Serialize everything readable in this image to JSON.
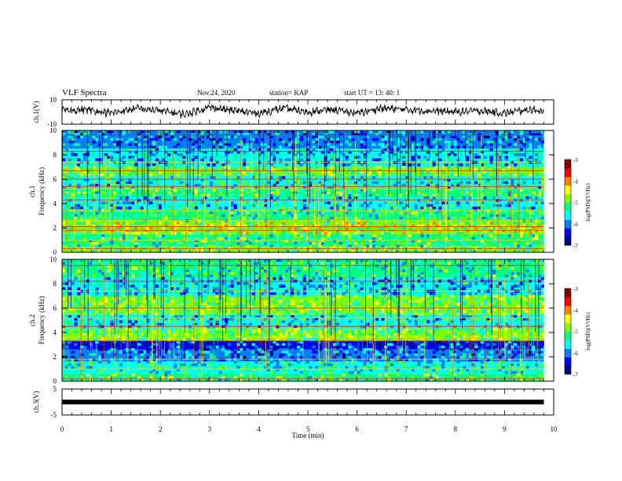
{
  "header": {
    "title": "VLF Spectra",
    "date": "Nov.24, 2020",
    "station": "station= KAP",
    "start_ut": "start UT =  13: 40: 1"
  },
  "colors": {
    "colormap": [
      "#00008a",
      "#0000ff",
      "#0080ff",
      "#00ffff",
      "#00ff80",
      "#80ff00",
      "#ffff00",
      "#ff8000",
      "#ff0000",
      "#8a0000"
    ],
    "trace": "#000000",
    "frame": "#000000"
  },
  "chart_data": [
    {
      "panel": "ch1-waveform",
      "type": "line",
      "ylabel": "ch.1(V)",
      "ylim": [
        -10,
        10
      ],
      "yticks": [
        "10",
        "-10"
      ],
      "xlim": [
        0,
        10
      ],
      "series": [
        {
          "x": [
            0,
            0.5,
            1,
            1.5,
            2,
            2.5,
            3,
            3.5,
            4,
            4.5,
            5,
            5.5,
            6,
            6.5,
            7,
            7.5,
            8,
            8.5,
            9,
            9.5,
            9.8
          ],
          "values": [
            1,
            2,
            -1,
            3,
            1,
            -2,
            4,
            1,
            -1,
            3,
            0,
            2,
            -1,
            3,
            2,
            1,
            0,
            1,
            -1,
            2,
            1
          ]
        }
      ]
    },
    {
      "panel": "ch1-spectrogram",
      "type": "heatmap",
      "ylabel": "ch.1\nFrequency (kHz)",
      "ylim": [
        0,
        10
      ],
      "yticks": [
        "0",
        "2",
        "4",
        "6",
        "8",
        "10"
      ],
      "xlim": [
        0,
        9.8
      ],
      "colorbar": {
        "label": "log(PSD)(V²/Hz)",
        "range": [
          -7,
          -3
        ],
        "ticks": [
          "-3",
          "-4",
          "-5",
          "-6",
          "-7"
        ]
      },
      "bands_khz": [
        {
          "f0": 0.0,
          "f1": 0.5,
          "level": -5.0
        },
        {
          "f0": 0.5,
          "f1": 1.5,
          "level": -5.2
        },
        {
          "f0": 1.5,
          "f1": 2.6,
          "level": -4.7
        },
        {
          "f0": 2.6,
          "f1": 3.5,
          "level": -5.3
        },
        {
          "f0": 3.5,
          "f1": 4.5,
          "level": -5.6
        },
        {
          "f0": 4.5,
          "f1": 5.3,
          "level": -5.1
        },
        {
          "f0": 5.3,
          "f1": 6.3,
          "level": -5.5
        },
        {
          "f0": 6.3,
          "f1": 7.0,
          "level": -5.0
        },
        {
          "f0": 7.0,
          "f1": 8.5,
          "level": -5.8
        },
        {
          "f0": 8.5,
          "f1": 10.0,
          "level": -6.0
        }
      ],
      "lines_khz": [
        0.3,
        1.0,
        1.8,
        2.1,
        2.6,
        3.4,
        4.3,
        5.2,
        5.4,
        6.0,
        6.7,
        7.4,
        8.3,
        9.6
      ]
    },
    {
      "panel": "ch2-spectrogram",
      "type": "heatmap",
      "ylabel": "ch.2\nFrequency (kHz)",
      "ylim": [
        0,
        10
      ],
      "yticks": [
        "0",
        "2",
        "4",
        "6",
        "8",
        "10"
      ],
      "xlim": [
        0,
        9.8
      ],
      "colorbar": {
        "label": "log(PSD)(V²/Hz)",
        "range": [
          -7,
          -3
        ],
        "ticks": [
          "-3",
          "-4",
          "-5",
          "-6",
          "-7"
        ]
      },
      "bands_khz": [
        {
          "f0": 0.0,
          "f1": 0.6,
          "level": -5.1
        },
        {
          "f0": 0.6,
          "f1": 1.6,
          "level": -5.4
        },
        {
          "f0": 1.6,
          "f1": 2.6,
          "level": -6.0
        },
        {
          "f0": 2.6,
          "f1": 3.3,
          "level": -6.3
        },
        {
          "f0": 3.3,
          "f1": 4.3,
          "level": -5.0
        },
        {
          "f0": 4.3,
          "f1": 5.5,
          "level": -5.6
        },
        {
          "f0": 5.5,
          "f1": 7.0,
          "level": -5.0
        },
        {
          "f0": 7.0,
          "f1": 8.5,
          "level": -5.7
        },
        {
          "f0": 8.5,
          "f1": 10.0,
          "level": -5.3
        }
      ],
      "lines_khz": [
        0.2,
        1.0,
        1.8,
        3.3,
        3.6,
        4.5,
        5.2,
        6.0,
        7.4,
        8.2,
        9.5
      ]
    },
    {
      "panel": "ch3-waveform",
      "type": "line",
      "ylabel": "ch.3(V)",
      "ylim": [
        -5,
        5
      ],
      "yticks": [
        "5",
        "-5"
      ],
      "xlim": [
        0,
        10
      ],
      "series": [
        {
          "x": [
            0,
            9.8
          ],
          "values": [
            0,
            0
          ]
        }
      ]
    }
  ],
  "xaxis": {
    "label": "Time (min)",
    "ticks": [
      "0",
      "1",
      "2",
      "3",
      "4",
      "5",
      "6",
      "7",
      "8",
      "9",
      "10"
    ],
    "range": [
      0,
      10
    ]
  }
}
